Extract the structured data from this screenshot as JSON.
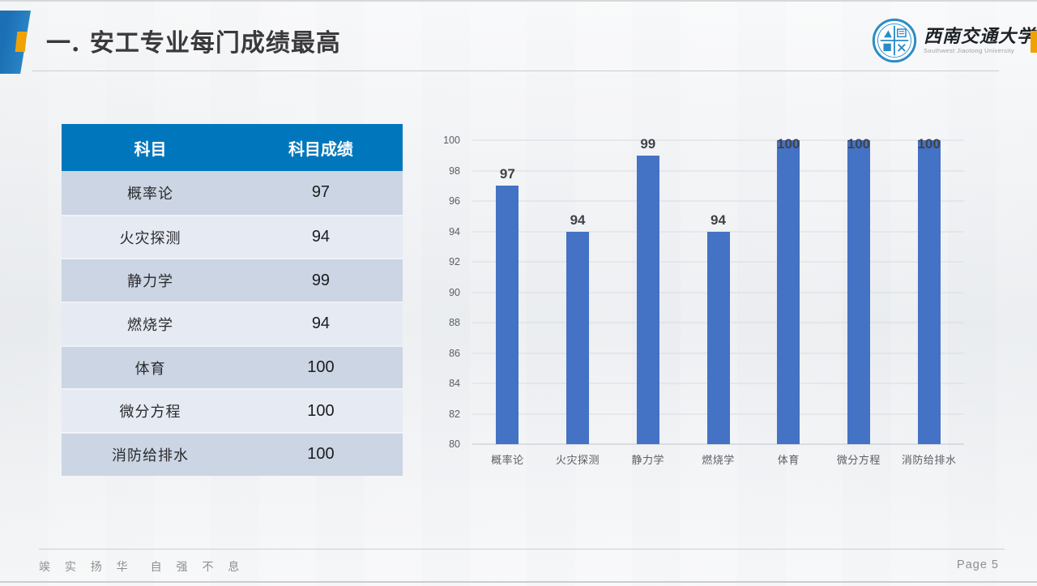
{
  "slide": {
    "title": "一. 安工专业每门成绩最高",
    "motto": "竢 实 扬 华　自 强 不 息",
    "page_label": "Page 5"
  },
  "logo": {
    "cn": "西南交通大学",
    "en": "Southwest Jiaotong University"
  },
  "table": {
    "headers": [
      "科目",
      "科目成绩"
    ],
    "rows": [
      [
        "概率论",
        "97"
      ],
      [
        "火灾探测",
        "94"
      ],
      [
        "静力学",
        "99"
      ],
      [
        "燃烧学",
        "94"
      ],
      [
        "体育",
        "100"
      ],
      [
        "微分方程",
        "100"
      ],
      [
        "消防给排水",
        "100"
      ]
    ]
  },
  "chart_data": {
    "type": "bar",
    "categories": [
      "概率论",
      "火灾探测",
      "静力学",
      "燃烧学",
      "体育",
      "微分方程",
      "消防给排水"
    ],
    "values": [
      97,
      94,
      99,
      94,
      100,
      100,
      100
    ],
    "title": "",
    "xlabel": "",
    "ylabel": "",
    "ylim": [
      80,
      100
    ],
    "ytick_step": 2,
    "grid": true,
    "legend": false,
    "data_labels": true,
    "bar_color": "#4472c4"
  },
  "theme": {
    "header_blue": "#0077bc",
    "bar_blue": "#4472c4",
    "row_dark": "#cbd5e4",
    "row_light": "#e5eaf3",
    "accent_orange": "#f0a202",
    "deco_blue": "#1b6fb4"
  }
}
